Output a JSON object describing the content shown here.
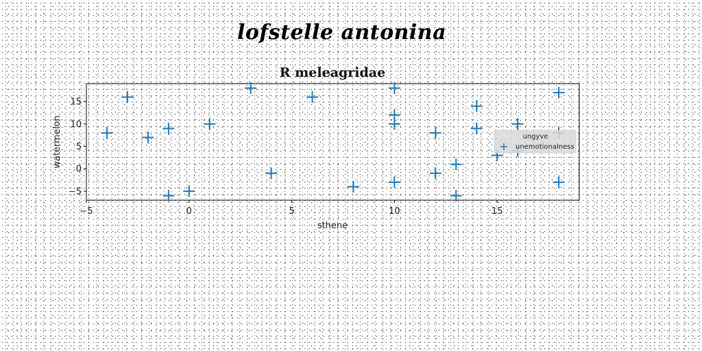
{
  "heading": "lofstelle antonina",
  "chart_data": {
    "type": "scatter",
    "title": "R meleagridae",
    "xlabel": "sthene",
    "ylabel": "watermelon",
    "xlim": [
      -5,
      19
    ],
    "ylim": [
      -7,
      19
    ],
    "xticks": [
      -5,
      0,
      5,
      10,
      15
    ],
    "yticks": [
      -5,
      0,
      5,
      10,
      15
    ],
    "grid": false,
    "legend": {
      "title": "ungyve",
      "placement": "center-right"
    },
    "marker": "+",
    "series": [
      {
        "name": "unemotionalness",
        "color": "#1f77b4",
        "points": [
          {
            "x": -4,
            "y": 8
          },
          {
            "x": -3,
            "y": 16
          },
          {
            "x": -2,
            "y": 7
          },
          {
            "x": -1,
            "y": 9
          },
          {
            "x": -1,
            "y": -6
          },
          {
            "x": 0,
            "y": -5
          },
          {
            "x": 1,
            "y": 10
          },
          {
            "x": 3,
            "y": 18
          },
          {
            "x": 4,
            "y": -1
          },
          {
            "x": 6,
            "y": 16
          },
          {
            "x": 8,
            "y": -4
          },
          {
            "x": 10,
            "y": 18
          },
          {
            "x": 10,
            "y": 12
          },
          {
            "x": 10,
            "y": 10
          },
          {
            "x": 10,
            "y": -3
          },
          {
            "x": 12,
            "y": 8
          },
          {
            "x": 12,
            "y": -1
          },
          {
            "x": 13,
            "y": 1
          },
          {
            "x": 13,
            "y": -6
          },
          {
            "x": 14,
            "y": 14
          },
          {
            "x": 14,
            "y": 9
          },
          {
            "x": 15,
            "y": 3
          },
          {
            "x": 16,
            "y": 10
          },
          {
            "x": 16,
            "y": 4
          },
          {
            "x": 18,
            "y": 17
          },
          {
            "x": 18,
            "y": 8
          },
          {
            "x": 18,
            "y": -3
          }
        ]
      }
    ]
  }
}
